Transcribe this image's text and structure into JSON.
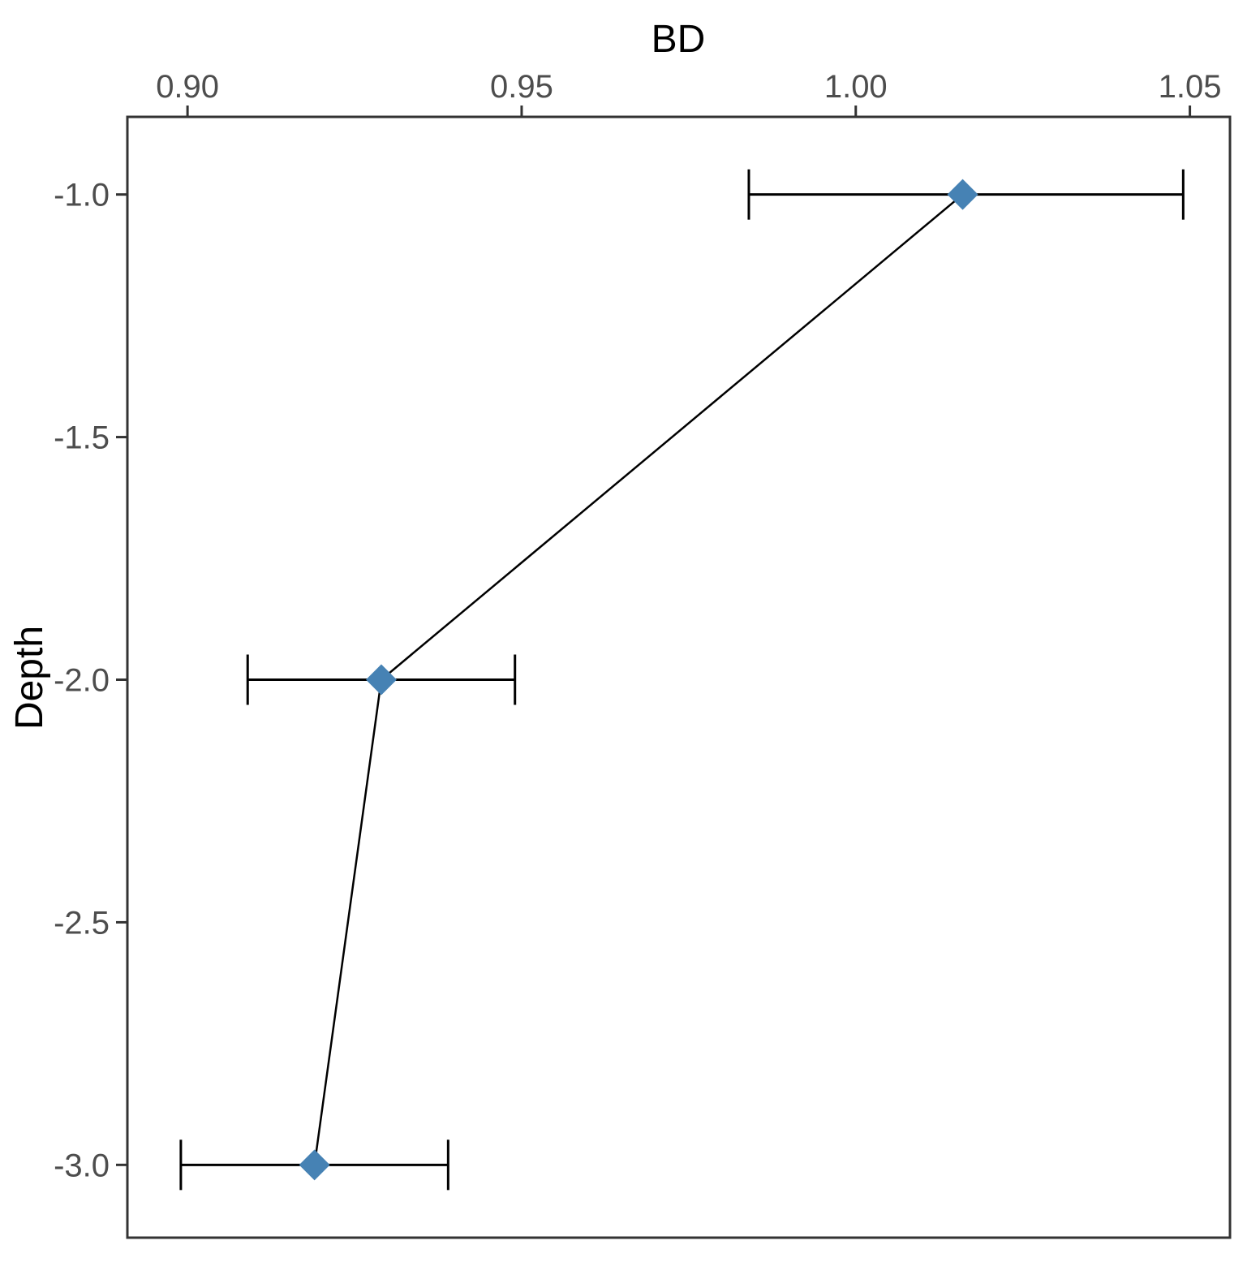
{
  "chart_data": {
    "type": "scatter",
    "title": "",
    "xlabel": "BD",
    "ylabel": "Depth",
    "x_axis_position": "top",
    "xlim": [
      0.891,
      1.056
    ],
    "ylim": [
      -3.15,
      -0.84
    ],
    "x_ticks": [
      0.9,
      0.95,
      1.0,
      1.05
    ],
    "x_tick_labels": [
      "0.90",
      "0.95",
      "1.00",
      "1.05"
    ],
    "y_ticks": [
      -1.0,
      -1.5,
      -2.0,
      -2.5,
      -3.0
    ],
    "y_tick_labels": [
      "-1.0",
      "-1.5",
      "-2.0",
      "-2.5",
      "-3.0"
    ],
    "grid": false,
    "marker": "diamond",
    "marker_color": "#4682b4",
    "line_color": "#000000",
    "series": [
      {
        "points": [
          {
            "x": 1.016,
            "y": -1.0,
            "xmin": 0.984,
            "xmax": 1.049
          },
          {
            "x": 0.929,
            "y": -2.0,
            "xmin": 0.909,
            "xmax": 0.949
          },
          {
            "x": 0.919,
            "y": -3.0,
            "xmin": 0.899,
            "xmax": 0.939
          }
        ]
      }
    ]
  }
}
